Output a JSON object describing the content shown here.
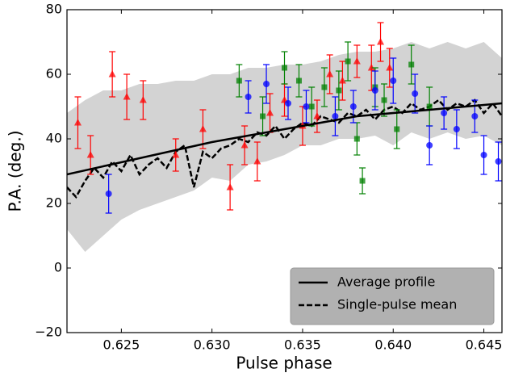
{
  "chart_data": {
    "type": "line",
    "xlabel": "Pulse phase",
    "ylabel": "P.A. (deg.)",
    "xlim": [
      0.622,
      0.646
    ],
    "ylim": [
      -20,
      80
    ],
    "xticks": [
      0.625,
      {
        "value": 0.63,
        "label": "0.630"
      },
      0.635,
      {
        "value": 0.64,
        "label": "0.640"
      },
      0.645
    ],
    "yticks": [
      {
        "value": -20,
        "label": "−20"
      },
      0,
      20,
      40,
      60,
      80
    ],
    "legend": "lower right",
    "band": {
      "color": "#d3d3d3",
      "x": [
        0.622,
        0.623,
        0.624,
        0.625,
        0.626,
        0.627,
        0.628,
        0.629,
        0.63,
        0.631,
        0.632,
        0.633,
        0.634,
        0.635,
        0.636,
        0.637,
        0.638,
        0.639,
        0.64,
        0.641,
        0.642,
        0.643,
        0.644,
        0.645,
        0.646
      ],
      "lower": [
        12,
        5,
        10,
        15,
        18,
        20,
        22,
        24,
        28,
        27,
        32,
        33,
        35,
        38,
        38,
        40,
        40,
        41,
        38,
        42,
        40,
        42,
        40,
        41,
        38
      ],
      "upper": [
        48,
        52,
        55,
        55,
        57,
        57,
        58,
        58,
        60,
        60,
        62,
        62,
        63,
        63,
        64,
        66,
        67,
        67,
        68,
        70,
        68,
        70,
        68,
        70,
        65
      ]
    },
    "series": [
      {
        "name": "Average profile",
        "style": "solid",
        "color": "#000000",
        "x": [
          0.622,
          0.626,
          0.63,
          0.634,
          0.638,
          0.642,
          0.646
        ],
        "values": [
          29,
          34,
          39,
          43,
          47,
          49,
          51
        ]
      },
      {
        "name": "Single-pulse mean",
        "style": "dashed",
        "color": "#000000",
        "x": [
          0.622,
          0.6225,
          0.623,
          0.6235,
          0.624,
          0.6245,
          0.625,
          0.6255,
          0.626,
          0.6265,
          0.627,
          0.6275,
          0.628,
          0.6285,
          0.629,
          0.6295,
          0.63,
          0.6305,
          0.631,
          0.6315,
          0.632,
          0.6325,
          0.633,
          0.6335,
          0.634,
          0.6345,
          0.635,
          0.6355,
          0.636,
          0.6365,
          0.637,
          0.6375,
          0.638,
          0.6385,
          0.639,
          0.6395,
          0.64,
          0.6405,
          0.641,
          0.6415,
          0.642,
          0.6425,
          0.643,
          0.6435,
          0.644,
          0.6445,
          0.645,
          0.6455,
          0.646
        ],
        "values": [
          25,
          22,
          27,
          31,
          28,
          33,
          30,
          35,
          29,
          32,
          34,
          31,
          36,
          38,
          25,
          36,
          34,
          37,
          38,
          40,
          39,
          42,
          41,
          44,
          40,
          43,
          45,
          44,
          47,
          46,
          45,
          48,
          47,
          49,
          46,
          49,
          50,
          48,
          51,
          49,
          50,
          52,
          49,
          51,
          50,
          52,
          48,
          51,
          47
        ]
      }
    ],
    "points": [
      {
        "color": "#ff0000",
        "marker": "triangle",
        "x": [
          0.6226,
          0.6233,
          0.6245,
          0.6253,
          0.6262,
          0.628,
          0.6295,
          0.631,
          0.6318,
          0.6325,
          0.6332,
          0.634,
          0.635,
          0.6358,
          0.6365,
          0.6372,
          0.638,
          0.6388,
          0.6393,
          0.6398
        ],
        "values": [
          45,
          35,
          60,
          53,
          52,
          35,
          43,
          25,
          38,
          33,
          48,
          52,
          44,
          47,
          60,
          58,
          64,
          62,
          70,
          62
        ],
        "errors": [
          8,
          6,
          7,
          7,
          6,
          5,
          6,
          7,
          6,
          6,
          6,
          5,
          6,
          5,
          6,
          6,
          5,
          7,
          6,
          6
        ]
      },
      {
        "color": "#008000",
        "marker": "square",
        "x": [
          0.6315,
          0.6328,
          0.634,
          0.6348,
          0.6355,
          0.6362,
          0.637,
          0.6375,
          0.638,
          0.6383,
          0.639,
          0.6395,
          0.6402,
          0.641,
          0.642
        ],
        "values": [
          58,
          47,
          62,
          58,
          50,
          56,
          55,
          64,
          40,
          27,
          56,
          52,
          43,
          63,
          50
        ],
        "errors": [
          5,
          6,
          5,
          5,
          6,
          6,
          6,
          6,
          5,
          4,
          6,
          5,
          6,
          6,
          6
        ]
      },
      {
        "color": "#0000ff",
        "marker": "circle",
        "x": [
          0.6243,
          0.632,
          0.633,
          0.6342,
          0.6352,
          0.6368,
          0.6378,
          0.639,
          0.64,
          0.6412,
          0.642,
          0.6428,
          0.6435,
          0.6445,
          0.645,
          0.6458
        ],
        "values": [
          23,
          53,
          57,
          51,
          50,
          47,
          50,
          55,
          58,
          54,
          38,
          48,
          43,
          47,
          35,
          33
        ],
        "errors": [
          6,
          5,
          6,
          5,
          5,
          6,
          5,
          6,
          7,
          6,
          6,
          5,
          6,
          5,
          6,
          6
        ]
      }
    ]
  }
}
